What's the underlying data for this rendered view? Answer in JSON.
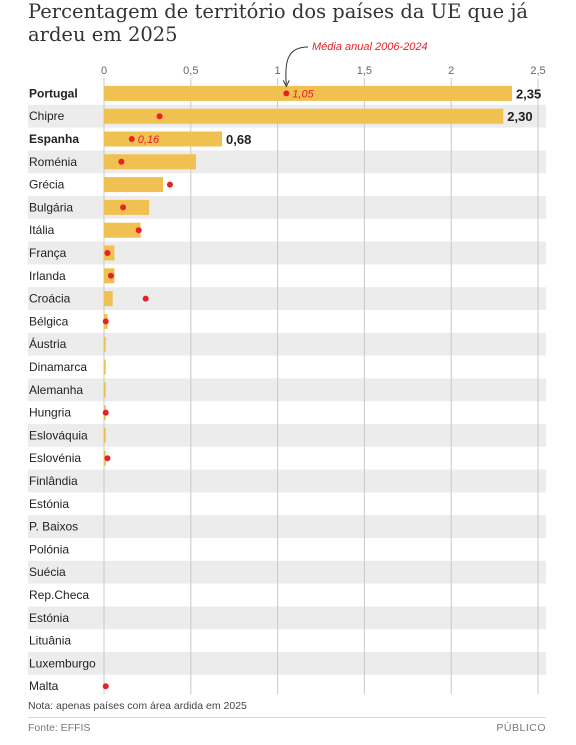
{
  "chart_data": {
    "type": "bar",
    "title": "Percentagem de território dos países da UE que já ardeu em 2025",
    "xlim": [
      0,
      2.5
    ],
    "xticks": [
      "0",
      "0,5",
      "1",
      "1,5",
      "2",
      "2,5"
    ],
    "annotation": "Média anual 2006-2024",
    "categories": [
      "Portugal",
      "Chipre",
      "Espanha",
      "Roménia",
      "Grécia",
      "Bulgária",
      "Itália",
      "França",
      "Irlanda",
      "Croácia",
      "Bélgica",
      "Áustria",
      "Dinamarca",
      "Alemanha",
      "Hungria",
      "Eslováquia",
      "Eslovénia",
      "Finlândia",
      "Estónia",
      "P. Baixos",
      "Polónia",
      "Suécia",
      "Rep.Checa",
      "Estónia",
      "Lituânia",
      "Luxemburgo",
      "Malta"
    ],
    "bold_categories": [
      "Portugal",
      "Espanha"
    ],
    "series": [
      {
        "name": "2025",
        "values": [
          2.35,
          2.3,
          0.68,
          0.53,
          0.34,
          0.26,
          0.21,
          0.06,
          0.06,
          0.05,
          0.02,
          0.01,
          0.01,
          0.01,
          0.01,
          0.01,
          0.01,
          0.0,
          0.0,
          0.0,
          0.0,
          0.0,
          0.0,
          0.0,
          0.0,
          0.0,
          0.0
        ],
        "value_labels": [
          "2,35",
          "2,30",
          "0,68",
          "",
          "",
          "",
          "",
          "",
          "",
          "",
          "",
          "",
          "",
          "",
          "",
          "",
          "",
          "",
          "",
          "",
          "",
          "",
          "",
          "",
          "",
          "",
          ""
        ],
        "color": "#f0c050"
      },
      {
        "name": "Média anual 2006-2024",
        "values": [
          1.05,
          0.32,
          0.16,
          0.1,
          0.38,
          0.11,
          0.2,
          0.02,
          0.04,
          0.24,
          0.01,
          null,
          null,
          null,
          0.01,
          null,
          0.02,
          null,
          null,
          null,
          null,
          null,
          null,
          null,
          null,
          null,
          0.01
        ],
        "value_labels": [
          "1,05",
          "",
          "0,16",
          "",
          "",
          "",
          "",
          "",
          "",
          "",
          "",
          "",
          "",
          "",
          "",
          "",
          "",
          "",
          "",
          "",
          "",
          "",
          "",
          "",
          "",
          "",
          ""
        ],
        "color": "#e8202a"
      }
    ]
  },
  "footer": {
    "note": "Nota: apenas países com área ardida em 2025",
    "source": "Fonte: EFFIS",
    "brand": "PÚBLICO"
  }
}
